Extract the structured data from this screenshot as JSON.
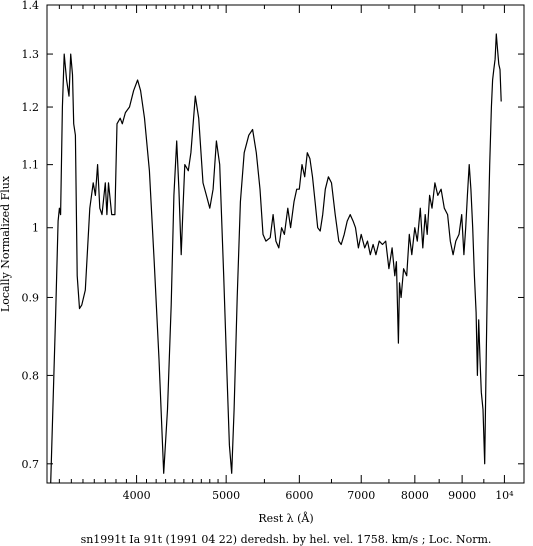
{
  "chart_data": {
    "type": "line",
    "xlabel": "Rest λ (Å)",
    "ylabel": "Locally Normalized Flux",
    "caption": "sn1991t Ia 91t (1991 04 22) deredsh. by hel. vel.  1758. km/s ;  Loc. Norm.",
    "x_scale": "log",
    "y_scale": "log",
    "xlim": [
      3200,
      10500
    ],
    "ylim": [
      0.68,
      1.4
    ],
    "grid": false,
    "x_ticks": [
      {
        "value": 4000,
        "label": "4000"
      },
      {
        "value": 5000,
        "label": "5000"
      },
      {
        "value": 6000,
        "label": "6000"
      },
      {
        "value": 7000,
        "label": "7000"
      },
      {
        "value": 8000,
        "label": "8000"
      },
      {
        "value": 9000,
        "label": "9000"
      },
      {
        "value": 10000,
        "label": "10⁴"
      }
    ],
    "y_ticks": [
      {
        "value": 0.7,
        "label": "0.7"
      },
      {
        "value": 0.8,
        "label": "0.8"
      },
      {
        "value": 0.9,
        "label": "0.9"
      },
      {
        "value": 1.0,
        "label": "1"
      },
      {
        "value": 1.1,
        "label": "1.1"
      },
      {
        "value": 1.2,
        "label": "1.2"
      },
      {
        "value": 1.3,
        "label": "1.3"
      },
      {
        "value": 1.4,
        "label": "1.4"
      }
    ],
    "x_minor_ticks": [
      3300,
      3400,
      3500,
      3600,
      3700,
      3800,
      3900,
      4100,
      4200,
      4300,
      4400,
      4500,
      4600,
      4700,
      4800,
      4900,
      5500,
      6500,
      7500,
      8500,
      9500
    ],
    "series": [
      {
        "values": [
          [
            3230,
            0.68
          ],
          [
            3270,
            0.88
          ],
          [
            3290,
            1.01
          ],
          [
            3300,
            1.03
          ],
          [
            3310,
            1.02
          ],
          [
            3325,
            1.2
          ],
          [
            3340,
            1.3
          ],
          [
            3360,
            1.25
          ],
          [
            3380,
            1.22
          ],
          [
            3395,
            1.3
          ],
          [
            3410,
            1.26
          ],
          [
            3420,
            1.17
          ],
          [
            3435,
            1.15
          ],
          [
            3450,
            0.93
          ],
          [
            3470,
            0.885
          ],
          [
            3490,
            0.89
          ],
          [
            3520,
            0.91
          ],
          [
            3560,
            1.03
          ],
          [
            3590,
            1.07
          ],
          [
            3610,
            1.05
          ],
          [
            3630,
            1.1
          ],
          [
            3650,
            1.03
          ],
          [
            3670,
            1.02
          ],
          [
            3700,
            1.07
          ],
          [
            3715,
            1.02
          ],
          [
            3730,
            1.07
          ],
          [
            3760,
            1.02
          ],
          [
            3790,
            1.02
          ],
          [
            3810,
            1.17
          ],
          [
            3840,
            1.18
          ],
          [
            3860,
            1.17
          ],
          [
            3890,
            1.19
          ],
          [
            3930,
            1.2
          ],
          [
            3970,
            1.23
          ],
          [
            4010,
            1.25
          ],
          [
            4040,
            1.23
          ],
          [
            4080,
            1.18
          ],
          [
            4130,
            1.09
          ],
          [
            4180,
            0.95
          ],
          [
            4230,
            0.82
          ],
          [
            4280,
            0.69
          ],
          [
            4320,
            0.76
          ],
          [
            4360,
            0.89
          ],
          [
            4390,
            1.05
          ],
          [
            4420,
            1.14
          ],
          [
            4445,
            1.06
          ],
          [
            4470,
            0.96
          ],
          [
            4490,
            1.03
          ],
          [
            4510,
            1.1
          ],
          [
            4550,
            1.09
          ],
          [
            4580,
            1.12
          ],
          [
            4630,
            1.22
          ],
          [
            4670,
            1.18
          ],
          [
            4720,
            1.07
          ],
          [
            4760,
            1.05
          ],
          [
            4800,
            1.03
          ],
          [
            4840,
            1.06
          ],
          [
            4880,
            1.14
          ],
          [
            4920,
            1.1
          ],
          [
            4970,
            0.93
          ],
          [
            5010,
            0.8
          ],
          [
            5040,
            0.72
          ],
          [
            5070,
            0.69
          ],
          [
            5100,
            0.76
          ],
          [
            5140,
            0.9
          ],
          [
            5180,
            1.04
          ],
          [
            5230,
            1.12
          ],
          [
            5290,
            1.15
          ],
          [
            5340,
            1.16
          ],
          [
            5390,
            1.12
          ],
          [
            5440,
            1.06
          ],
          [
            5480,
            0.99
          ],
          [
            5520,
            0.98
          ],
          [
            5580,
            0.985
          ],
          [
            5620,
            1.02
          ],
          [
            5660,
            0.98
          ],
          [
            5700,
            0.97
          ],
          [
            5740,
            1.0
          ],
          [
            5780,
            0.99
          ],
          [
            5830,
            1.03
          ],
          [
            5870,
            1.0
          ],
          [
            5920,
            1.04
          ],
          [
            5960,
            1.06
          ],
          [
            6000,
            1.06
          ],
          [
            6040,
            1.1
          ],
          [
            6080,
            1.08
          ],
          [
            6120,
            1.12
          ],
          [
            6160,
            1.11
          ],
          [
            6200,
            1.08
          ],
          [
            6240,
            1.04
          ],
          [
            6280,
            1.0
          ],
          [
            6320,
            0.995
          ],
          [
            6360,
            1.02
          ],
          [
            6400,
            1.06
          ],
          [
            6450,
            1.08
          ],
          [
            6500,
            1.07
          ],
          [
            6560,
            1.02
          ],
          [
            6620,
            0.98
          ],
          [
            6660,
            0.975
          ],
          [
            6710,
            0.99
          ],
          [
            6760,
            1.01
          ],
          [
            6810,
            1.02
          ],
          [
            6860,
            1.01
          ],
          [
            6900,
            1.0
          ],
          [
            6950,
            0.97
          ],
          [
            7000,
            0.99
          ],
          [
            7060,
            0.97
          ],
          [
            7110,
            0.98
          ],
          [
            7160,
            0.96
          ],
          [
            7210,
            0.975
          ],
          [
            7260,
            0.96
          ],
          [
            7320,
            0.98
          ],
          [
            7380,
            0.975
          ],
          [
            7440,
            0.98
          ],
          [
            7500,
            0.94
          ],
          [
            7560,
            0.97
          ],
          [
            7610,
            0.93
          ],
          [
            7640,
            0.95
          ],
          [
            7680,
            0.84
          ],
          [
            7700,
            0.92
          ],
          [
            7730,
            0.9
          ],
          [
            7780,
            0.94
          ],
          [
            7840,
            0.93
          ],
          [
            7890,
            0.99
          ],
          [
            7940,
            0.96
          ],
          [
            8000,
            1.0
          ],
          [
            8050,
            0.98
          ],
          [
            8110,
            1.03
          ],
          [
            8160,
            0.97
          ],
          [
            8210,
            1.02
          ],
          [
            8250,
            0.99
          ],
          [
            8300,
            1.05
          ],
          [
            8350,
            1.03
          ],
          [
            8410,
            1.07
          ],
          [
            8470,
            1.05
          ],
          [
            8540,
            1.06
          ],
          [
            8610,
            1.03
          ],
          [
            8680,
            1.02
          ],
          [
            8740,
            0.98
          ],
          [
            8800,
            0.96
          ],
          [
            8860,
            0.98
          ],
          [
            8930,
            0.99
          ],
          [
            8990,
            1.02
          ],
          [
            9040,
            0.96
          ],
          [
            9080,
            1.0
          ],
          [
            9120,
            1.05
          ],
          [
            9160,
            1.1
          ],
          [
            9200,
            1.06
          ],
          [
            9240,
            1.0
          ],
          [
            9280,
            0.93
          ],
          [
            9320,
            0.88
          ],
          [
            9350,
            0.8
          ],
          [
            9380,
            0.87
          ],
          [
            9410,
            0.82
          ],
          [
            9440,
            0.78
          ],
          [
            9480,
            0.76
          ],
          [
            9520,
            0.7
          ],
          [
            9560,
            0.83
          ],
          [
            9600,
            0.98
          ],
          [
            9640,
            1.1
          ],
          [
            9680,
            1.2
          ],
          [
            9710,
            1.25
          ],
          [
            9740,
            1.27
          ],
          [
            9770,
            1.29
          ],
          [
            9800,
            1.34
          ],
          [
            9830,
            1.31
          ],
          [
            9860,
            1.28
          ],
          [
            9890,
            1.27
          ],
          [
            9920,
            1.21
          ]
        ]
      }
    ]
  }
}
